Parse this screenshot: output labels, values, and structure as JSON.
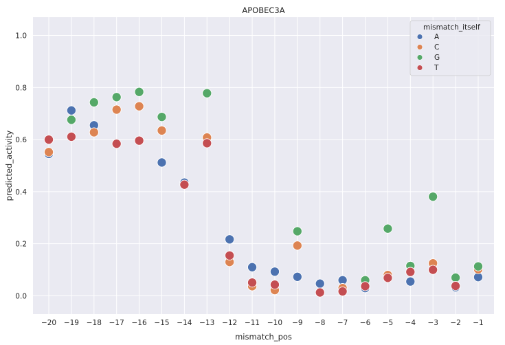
{
  "chart_data": {
    "type": "scatter",
    "title": "APOBEC3A",
    "xlabel": "mismatch_pos",
    "ylabel": "predicted_activity",
    "categories": [
      "−20",
      "−19",
      "−18",
      "−17",
      "−16",
      "−15",
      "−14",
      "−13",
      "−12",
      "−11",
      "−10",
      "−9",
      "−8",
      "−7",
      "−6",
      "−5",
      "−4",
      "−3",
      "−2",
      "−1"
    ],
    "x": [
      -20,
      -19,
      -18,
      -17,
      -16,
      -15,
      -14,
      -13,
      -12,
      -11,
      -10,
      -9,
      -8,
      -7,
      -6,
      -5,
      -4,
      -3,
      -2,
      -1
    ],
    "ylim": [
      -0.07,
      1.07
    ],
    "yticks": [
      0.0,
      0.2,
      0.4,
      0.6,
      0.8,
      1.0
    ],
    "ytick_labels": [
      "0.0",
      "0.2",
      "0.4",
      "0.6",
      "0.8",
      "1.0"
    ],
    "grid": true,
    "legend_title": "mismatch_itself",
    "legend_position": "top-right",
    "series": [
      {
        "name": "A",
        "color": "#4c72b0",
        "values": [
          0.545,
          0.712,
          0.655,
          null,
          null,
          0.512,
          0.435,
          null,
          0.217,
          0.11,
          0.093,
          0.073,
          0.047,
          0.06,
          0.03,
          null,
          0.055,
          null,
          0.033,
          0.072
        ]
      },
      {
        "name": "C",
        "color": "#dd8452",
        "values": [
          0.552,
          null,
          0.628,
          0.715,
          0.728,
          0.635,
          null,
          0.608,
          0.13,
          0.037,
          0.022,
          0.193,
          null,
          0.03,
          null,
          0.08,
          null,
          0.125,
          null,
          0.102
        ]
      },
      {
        "name": "G",
        "color": "#55a868",
        "values": [
          null,
          0.676,
          0.743,
          0.763,
          0.783,
          0.687,
          null,
          0.778,
          null,
          null,
          null,
          0.248,
          null,
          null,
          0.06,
          0.258,
          0.115,
          0.381,
          0.07,
          0.113
        ]
      },
      {
        "name": "T",
        "color": "#c44e52",
        "values": [
          0.6,
          0.611,
          null,
          0.584,
          0.596,
          null,
          0.427,
          0.586,
          0.155,
          0.051,
          0.043,
          null,
          0.013,
          0.017,
          0.037,
          0.069,
          0.092,
          0.1,
          0.038,
          null
        ]
      }
    ]
  }
}
